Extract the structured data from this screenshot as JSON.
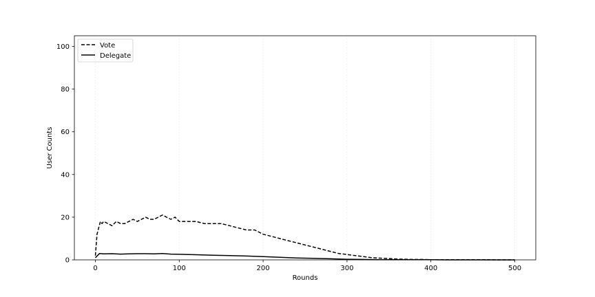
{
  "chart_data": {
    "type": "line",
    "title": "",
    "xlabel": "Rounds",
    "ylabel": "User Counts",
    "xlim": [
      -25,
      525
    ],
    "ylim": [
      0,
      105
    ],
    "xticks": [
      "0",
      "100",
      "200",
      "300",
      "400",
      "500"
    ],
    "yticks": [
      "0",
      "20",
      "40",
      "60",
      "80",
      "100"
    ],
    "grid": "vertical",
    "legend_position": "top-left",
    "series": [
      {
        "name": "Vote",
        "style": "dashed",
        "color": "#000000",
        "x": [
          0,
          2,
          4,
          6,
          8,
          10,
          15,
          20,
          25,
          30,
          35,
          40,
          45,
          50,
          55,
          60,
          65,
          70,
          75,
          80,
          85,
          90,
          95,
          100,
          110,
          120,
          130,
          140,
          150,
          160,
          170,
          180,
          190,
          200,
          210,
          220,
          230,
          240,
          250,
          260,
          270,
          280,
          290,
          300,
          310,
          320,
          330,
          340,
          350,
          360,
          370,
          380,
          390,
          400,
          420,
          440,
          460,
          480,
          500
        ],
        "values": [
          2,
          12,
          15,
          18,
          17,
          18,
          17,
          16,
          18,
          17,
          17,
          18,
          19,
          18,
          19,
          20,
          19,
          19,
          20,
          21,
          20,
          19,
          20,
          18,
          18,
          18,
          17,
          17,
          17,
          16,
          15,
          14,
          14,
          12,
          11,
          10,
          9,
          8,
          7,
          6,
          5,
          4,
          3,
          2.5,
          2,
          1.5,
          1,
          0.8,
          0.6,
          0.4,
          0.3,
          0.2,
          0.2,
          0.1,
          0.1,
          0.1,
          0.1,
          0,
          0
        ]
      },
      {
        "name": "Delegate",
        "style": "solid",
        "color": "#000000",
        "x": [
          0,
          5,
          10,
          20,
          30,
          40,
          50,
          60,
          70,
          80,
          90,
          100,
          120,
          140,
          160,
          180,
          200,
          220,
          240,
          260,
          280,
          300,
          320,
          340,
          360,
          380,
          400,
          420,
          440,
          460,
          480,
          500
        ],
        "values": [
          1,
          3,
          2.8,
          2.9,
          2.7,
          2.8,
          2.9,
          2.9,
          2.8,
          3.0,
          2.7,
          2.6,
          2.4,
          2.2,
          2.0,
          1.8,
          1.5,
          1.2,
          0.9,
          0.7,
          0.5,
          0.3,
          0.2,
          0.1,
          0.1,
          0.05,
          0.05,
          0,
          0,
          0,
          0,
          0
        ]
      }
    ]
  }
}
